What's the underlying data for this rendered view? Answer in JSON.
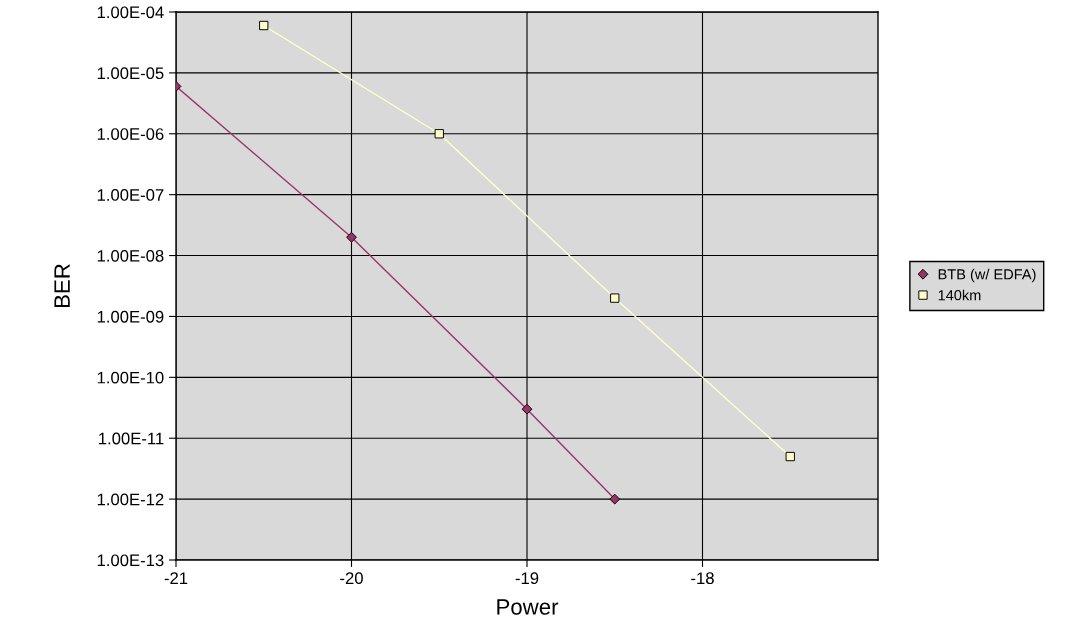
{
  "chart_data": {
    "type": "line",
    "xlabel": "Power",
    "ylabel": "BER",
    "log": "y",
    "xlim": [
      -21,
      -17
    ],
    "xticks": [
      -21,
      -20,
      -19,
      -18
    ],
    "ylim": [
      1e-13,
      0.0001
    ],
    "yticks": [
      {
        "value": 1e-13,
        "label": "1.00E-13"
      },
      {
        "value": 1e-12,
        "label": "1.00E-12"
      },
      {
        "value": 1e-11,
        "label": "1.00E-11"
      },
      {
        "value": 1e-10,
        "label": "1.00E-10"
      },
      {
        "value": 1e-09,
        "label": "1.00E-09"
      },
      {
        "value": 1e-08,
        "label": "1.00E-08"
      },
      {
        "value": 1e-07,
        "label": "1.00E-07"
      },
      {
        "value": 1e-06,
        "label": "1.00E-06"
      },
      {
        "value": 1e-05,
        "label": "1.00E-05"
      },
      {
        "value": 0.0001,
        "label": "1.00E-04"
      }
    ],
    "grid": true,
    "legend": "right",
    "series": [
      {
        "name": "BTB (w/ EDFA)",
        "color": "#993366",
        "marker": "diamond",
        "x": [
          -21,
          -20,
          -19,
          -18.5
        ],
        "values": [
          6e-06,
          2e-08,
          3e-11,
          1e-12
        ]
      },
      {
        "name": "140km",
        "color": "#ffffcc",
        "marker": "square",
        "x": [
          -20.5,
          -19.5,
          -18.5,
          -17.5
        ],
        "values": [
          6e-05,
          1e-06,
          2e-09,
          5e-12
        ]
      }
    ]
  }
}
